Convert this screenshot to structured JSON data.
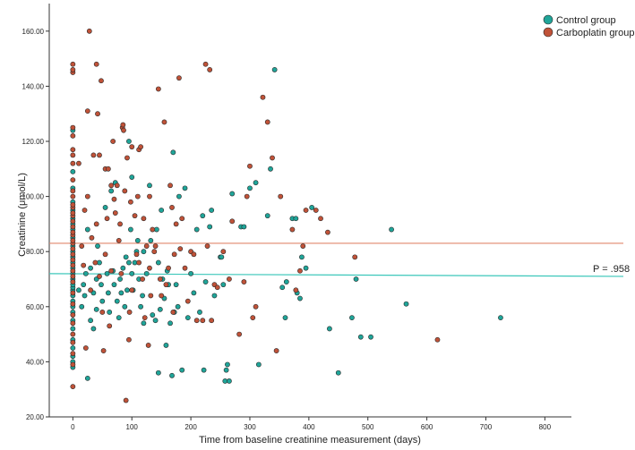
{
  "chart_data": {
    "type": "scatter",
    "xlabel": "Time from baseline creatinine measurement (days)",
    "ylabel": "Creatinine (μmol/L)",
    "xlim": [
      -40,
      845
    ],
    "ylim": [
      20,
      170
    ],
    "x_ticks": [
      0,
      100,
      200,
      300,
      400,
      500,
      600,
      700,
      800
    ],
    "y_ticks": [
      20,
      40,
      60,
      80,
      100,
      120,
      140,
      160
    ],
    "x_tick_labels": [
      "0",
      "100",
      "200",
      "300",
      "400",
      "500",
      "600",
      "700",
      "800"
    ],
    "y_tick_labels": [
      "20.00",
      "40.00",
      "60.00",
      "80.00",
      "100.00",
      "120.00",
      "140.00",
      "160.00"
    ],
    "grid": false,
    "legend_position": "top-right",
    "annotation": "P = .958",
    "series": [
      {
        "name": "Control group",
        "color": "#1fa599",
        "mean_line": [
          [
            -40,
            72
          ],
          [
            845,
            71
          ]
        ],
        "points": [
          [
            0,
            38
          ],
          [
            0,
            40
          ],
          [
            0,
            42
          ],
          [
            0,
            45
          ],
          [
            0,
            48
          ],
          [
            0,
            52
          ],
          [
            0,
            55
          ],
          [
            0,
            58
          ],
          [
            0,
            60
          ],
          [
            0,
            62
          ],
          [
            0,
            64
          ],
          [
            0,
            66
          ],
          [
            0,
            67
          ],
          [
            0,
            68
          ],
          [
            0,
            70
          ],
          [
            0,
            72
          ],
          [
            0,
            74
          ],
          [
            0,
            76
          ],
          [
            0,
            78
          ],
          [
            0,
            80
          ],
          [
            0,
            82
          ],
          [
            0,
            85
          ],
          [
            0,
            88
          ],
          [
            0,
            90
          ],
          [
            0,
            92
          ],
          [
            0,
            95
          ],
          [
            0,
            98
          ],
          [
            0,
            103
          ],
          [
            0,
            109
          ],
          [
            0,
            124
          ],
          [
            10,
            66
          ],
          [
            15,
            60
          ],
          [
            18,
            68
          ],
          [
            20,
            64
          ],
          [
            22,
            72
          ],
          [
            25,
            34
          ],
          [
            25,
            88
          ],
          [
            30,
            74
          ],
          [
            30,
            55
          ],
          [
            35,
            65
          ],
          [
            35,
            52
          ],
          [
            40,
            70
          ],
          [
            40,
            59
          ],
          [
            42,
            82
          ],
          [
            45,
            76
          ],
          [
            48,
            68
          ],
          [
            50,
            62
          ],
          [
            55,
            96
          ],
          [
            58,
            72
          ],
          [
            60,
            65
          ],
          [
            62,
            58
          ],
          [
            65,
            102
          ],
          [
            68,
            73
          ],
          [
            70,
            68
          ],
          [
            72,
            105
          ],
          [
            75,
            62
          ],
          [
            78,
            56
          ],
          [
            80,
            70
          ],
          [
            82,
            65
          ],
          [
            85,
            74
          ],
          [
            88,
            60
          ],
          [
            90,
            78
          ],
          [
            92,
            66
          ],
          [
            95,
            120
          ],
          [
            95,
            76
          ],
          [
            98,
            88
          ],
          [
            100,
            107
          ],
          [
            100,
            72
          ],
          [
            102,
            66
          ],
          [
            105,
            76
          ],
          [
            108,
            80
          ],
          [
            110,
            84
          ],
          [
            112,
            70
          ],
          [
            115,
            60
          ],
          [
            118,
            64
          ],
          [
            120,
            80
          ],
          [
            120,
            54
          ],
          [
            125,
            72
          ],
          [
            130,
            104
          ],
          [
            132,
            84
          ],
          [
            135,
            57
          ],
          [
            140,
            55
          ],
          [
            142,
            88
          ],
          [
            145,
            36
          ],
          [
            145,
            76
          ],
          [
            148,
            59
          ],
          [
            150,
            95
          ],
          [
            152,
            70
          ],
          [
            155,
            63
          ],
          [
            158,
            46
          ],
          [
            160,
            73
          ],
          [
            162,
            68
          ],
          [
            165,
            54
          ],
          [
            168,
            35
          ],
          [
            170,
            116
          ],
          [
            172,
            58
          ],
          [
            175,
            68
          ],
          [
            178,
            60
          ],
          [
            180,
            100
          ],
          [
            185,
            37
          ],
          [
            190,
            103
          ],
          [
            195,
            56
          ],
          [
            200,
            72
          ],
          [
            205,
            65
          ],
          [
            210,
            88
          ],
          [
            215,
            58
          ],
          [
            220,
            93
          ],
          [
            222,
            37
          ],
          [
            225,
            69
          ],
          [
            232,
            89
          ],
          [
            235,
            95
          ],
          [
            240,
            64
          ],
          [
            250,
            78
          ],
          [
            252,
            78
          ],
          [
            255,
            68
          ],
          [
            258,
            33
          ],
          [
            260,
            37
          ],
          [
            262,
            39
          ],
          [
            265,
            33
          ],
          [
            270,
            101
          ],
          [
            285,
            89
          ],
          [
            290,
            89
          ],
          [
            300,
            103
          ],
          [
            310,
            105
          ],
          [
            315,
            39
          ],
          [
            330,
            93
          ],
          [
            335,
            110
          ],
          [
            342,
            146
          ],
          [
            355,
            67
          ],
          [
            360,
            56
          ],
          [
            362,
            69
          ],
          [
            372,
            92
          ],
          [
            378,
            92
          ],
          [
            380,
            65
          ],
          [
            385,
            63
          ],
          [
            388,
            78
          ],
          [
            395,
            74
          ],
          [
            405,
            96
          ],
          [
            435,
            52
          ],
          [
            450,
            36
          ],
          [
            473,
            56
          ],
          [
            480,
            70
          ],
          [
            488,
            49
          ],
          [
            505,
            49
          ],
          [
            540,
            88
          ],
          [
            565,
            61
          ],
          [
            725,
            56
          ]
        ]
      },
      {
        "name": "Carboplatin group",
        "color": "#c05238",
        "mean_line": [
          [
            -40,
            83
          ],
          [
            845,
            83
          ]
        ],
        "points": [
          [
            0,
            31
          ],
          [
            0,
            39
          ],
          [
            0,
            43
          ],
          [
            0,
            47
          ],
          [
            0,
            50
          ],
          [
            0,
            54
          ],
          [
            0,
            57
          ],
          [
            0,
            61
          ],
          [
            0,
            65
          ],
          [
            0,
            69
          ],
          [
            0,
            71
          ],
          [
            0,
            73
          ],
          [
            0,
            75
          ],
          [
            0,
            77
          ],
          [
            0,
            79
          ],
          [
            0,
            81
          ],
          [
            0,
            83
          ],
          [
            0,
            84
          ],
          [
            0,
            86
          ],
          [
            0,
            87
          ],
          [
            0,
            89
          ],
          [
            0,
            91
          ],
          [
            0,
            93
          ],
          [
            0,
            94
          ],
          [
            0,
            96
          ],
          [
            0,
            97
          ],
          [
            0,
            100
          ],
          [
            0,
            102
          ],
          [
            0,
            106
          ],
          [
            0,
            112
          ],
          [
            0,
            115
          ],
          [
            0,
            117
          ],
          [
            0,
            122
          ],
          [
            0,
            125
          ],
          [
            0,
            145
          ],
          [
            0,
            146
          ],
          [
            0,
            148
          ],
          [
            10,
            112
          ],
          [
            15,
            82
          ],
          [
            18,
            75
          ],
          [
            20,
            95
          ],
          [
            22,
            45
          ],
          [
            25,
            131
          ],
          [
            25,
            100
          ],
          [
            28,
            160
          ],
          [
            30,
            66
          ],
          [
            32,
            85
          ],
          [
            35,
            115
          ],
          [
            38,
            76
          ],
          [
            40,
            148
          ],
          [
            40,
            90
          ],
          [
            42,
            130
          ],
          [
            45,
            115
          ],
          [
            45,
            71
          ],
          [
            48,
            142
          ],
          [
            50,
            58
          ],
          [
            52,
            44
          ],
          [
            55,
            110
          ],
          [
            55,
            79
          ],
          [
            58,
            92
          ],
          [
            60,
            110
          ],
          [
            62,
            53
          ],
          [
            65,
            104
          ],
          [
            65,
            73
          ],
          [
            68,
            120
          ],
          [
            70,
            99
          ],
          [
            72,
            94
          ],
          [
            75,
            104
          ],
          [
            78,
            84
          ],
          [
            80,
            90
          ],
          [
            82,
            72
          ],
          [
            84,
            125
          ],
          [
            85,
            126
          ],
          [
            86,
            124
          ],
          [
            88,
            102
          ],
          [
            90,
            26
          ],
          [
            92,
            114
          ],
          [
            95,
            48
          ],
          [
            96,
            58
          ],
          [
            98,
            98
          ],
          [
            100,
            118
          ],
          [
            100,
            66
          ],
          [
            105,
            93
          ],
          [
            108,
            79
          ],
          [
            110,
            100
          ],
          [
            112,
            117
          ],
          [
            112,
            76
          ],
          [
            115,
            118
          ],
          [
            118,
            70
          ],
          [
            120,
            92
          ],
          [
            122,
            56
          ],
          [
            125,
            82
          ],
          [
            128,
            46
          ],
          [
            130,
            100
          ],
          [
            130,
            74
          ],
          [
            132,
            64
          ],
          [
            135,
            88
          ],
          [
            138,
            80
          ],
          [
            140,
            82
          ],
          [
            145,
            139
          ],
          [
            148,
            70
          ],
          [
            150,
            64
          ],
          [
            155,
            127
          ],
          [
            158,
            68
          ],
          [
            162,
            74
          ],
          [
            165,
            104
          ],
          [
            168,
            96
          ],
          [
            170,
            58
          ],
          [
            172,
            79
          ],
          [
            175,
            90
          ],
          [
            180,
            143
          ],
          [
            182,
            81
          ],
          [
            185,
            92
          ],
          [
            190,
            74
          ],
          [
            195,
            62
          ],
          [
            200,
            80
          ],
          [
            205,
            79
          ],
          [
            210,
            55
          ],
          [
            220,
            55
          ],
          [
            225,
            148
          ],
          [
            228,
            82
          ],
          [
            232,
            146
          ],
          [
            235,
            55
          ],
          [
            240,
            68
          ],
          [
            245,
            67
          ],
          [
            255,
            80
          ],
          [
            265,
            70
          ],
          [
            270,
            91
          ],
          [
            282,
            50
          ],
          [
            290,
            69
          ],
          [
            295,
            100
          ],
          [
            300,
            111
          ],
          [
            305,
            56
          ],
          [
            310,
            60
          ],
          [
            322,
            136
          ],
          [
            330,
            127
          ],
          [
            338,
            114
          ],
          [
            345,
            44
          ],
          [
            352,
            100
          ],
          [
            372,
            88
          ],
          [
            378,
            66
          ],
          [
            385,
            73
          ],
          [
            390,
            82
          ],
          [
            395,
            95
          ],
          [
            412,
            95
          ],
          [
            420,
            92
          ],
          [
            432,
            87
          ],
          [
            478,
            78
          ],
          [
            618,
            48
          ]
        ]
      }
    ]
  }
}
